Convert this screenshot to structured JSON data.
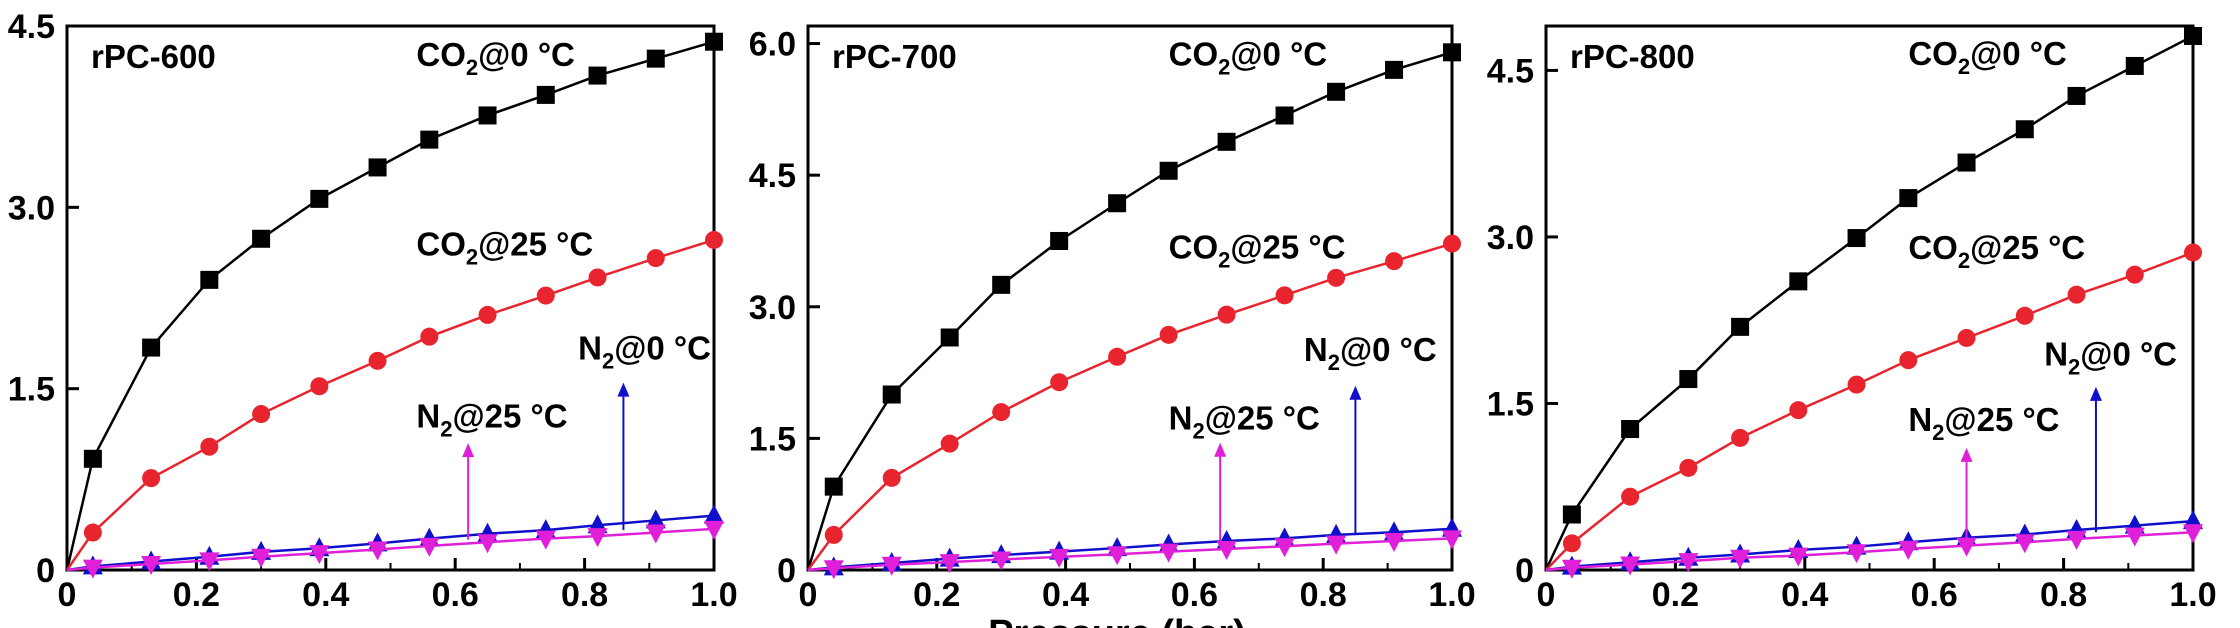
{
  "x_axis_label": "Pressure (bar)",
  "chart_data": [
    {
      "type": "line",
      "title": "rPC-600",
      "xlim": [
        0,
        1.0
      ],
      "ylim": [
        0,
        4.5
      ],
      "x_ticks": [
        0,
        0.2,
        0.4,
        0.6,
        0.8,
        1.0
      ],
      "y_ticks": [
        0,
        1.5,
        3.0,
        4.5
      ],
      "x_tick_labels": [
        "0",
        "0.2",
        "0.4",
        "0.6",
        "0.8",
        "1.0"
      ],
      "y_tick_labels": [
        "0",
        "1.5",
        "3.0",
        "4.5"
      ],
      "grid": false,
      "series": [
        {
          "name": "CO2@0 °C",
          "label_sub": "2",
          "label_pre": "CO",
          "label_post": "@0 °C",
          "color": "#000000",
          "marker": "square",
          "x": [
            0,
            0.04,
            0.13,
            0.22,
            0.3,
            0.39,
            0.48,
            0.56,
            0.65,
            0.74,
            0.82,
            0.91,
            1.0
          ],
          "y": [
            0,
            0.92,
            1.84,
            2.4,
            2.74,
            3.07,
            3.33,
            3.56,
            3.76,
            3.93,
            4.09,
            4.23,
            4.37
          ]
        },
        {
          "name": "CO2@25 °C",
          "label_sub": "2",
          "label_pre": "CO",
          "label_post": "@25 °C",
          "color": "#e8242e",
          "marker": "circle",
          "x": [
            0,
            0.04,
            0.13,
            0.22,
            0.3,
            0.39,
            0.48,
            0.56,
            0.65,
            0.74,
            0.82,
            0.91,
            1.0
          ],
          "y": [
            0,
            0.31,
            0.76,
            1.02,
            1.29,
            1.52,
            1.73,
            1.93,
            2.11,
            2.27,
            2.42,
            2.58,
            2.73
          ]
        },
        {
          "name": "N2@0 °C",
          "label_sub": "2",
          "label_pre": "N",
          "label_post": "@0 °C",
          "color": "#1010cc",
          "marker": "triangle-up",
          "x": [
            0,
            0.04,
            0.13,
            0.22,
            0.3,
            0.39,
            0.48,
            0.56,
            0.65,
            0.74,
            0.82,
            0.91,
            1.0
          ],
          "y": [
            0,
            0.03,
            0.07,
            0.11,
            0.15,
            0.18,
            0.22,
            0.26,
            0.3,
            0.33,
            0.37,
            0.41,
            0.45
          ]
        },
        {
          "name": "N2@25 °C",
          "label_sub": "2",
          "label_pre": "N",
          "label_post": "@25 °C",
          "color": "#e020d8",
          "marker": "triangle-down",
          "x": [
            0,
            0.04,
            0.13,
            0.22,
            0.3,
            0.39,
            0.48,
            0.56,
            0.65,
            0.74,
            0.82,
            0.91,
            1.0
          ],
          "y": [
            0,
            0.02,
            0.05,
            0.08,
            0.11,
            0.14,
            0.17,
            0.2,
            0.23,
            0.26,
            0.28,
            0.31,
            0.34
          ]
        }
      ],
      "annotations": [
        {
          "series": 0,
          "label_x": 0.54,
          "label_y": 4.17
        },
        {
          "series": 1,
          "label_x": 0.54,
          "label_y": 2.6
        },
        {
          "series": 2,
          "label_x": 0.79,
          "label_y": 1.74,
          "arrow_x": 0.86,
          "arrow_from": 0.33,
          "arrow_to": 1.55
        },
        {
          "series": 3,
          "label_x": 0.54,
          "label_y": 1.18,
          "arrow_x": 0.62,
          "arrow_from": 0.25,
          "arrow_to": 1.05
        }
      ]
    },
    {
      "type": "line",
      "title": "rPC-700",
      "xlim": [
        0,
        1.0
      ],
      "ylim": [
        0,
        6.2
      ],
      "x_ticks": [
        0,
        0.2,
        0.4,
        0.6,
        0.8,
        1.0
      ],
      "y_ticks": [
        0,
        1.5,
        3.0,
        4.5,
        6.0
      ],
      "x_tick_labels": [
        "0",
        "0.2",
        "0.4",
        "0.6",
        "0.8",
        "1.0"
      ],
      "y_tick_labels": [
        "0",
        "1.5",
        "3.0",
        "4.5",
        "6.0"
      ],
      "grid": false,
      "series": [
        {
          "name": "CO2@0 °C",
          "label_sub": "2",
          "label_pre": "CO",
          "label_post": "@0 °C",
          "color": "#000000",
          "marker": "square",
          "x": [
            0,
            0.04,
            0.13,
            0.22,
            0.3,
            0.39,
            0.48,
            0.56,
            0.65,
            0.74,
            0.82,
            0.91,
            1.0
          ],
          "y": [
            0,
            0.95,
            2.0,
            2.65,
            3.25,
            3.75,
            4.18,
            4.55,
            4.88,
            5.18,
            5.45,
            5.7,
            5.9
          ]
        },
        {
          "name": "CO2@25 °C",
          "label_sub": "2",
          "label_pre": "CO",
          "label_post": "@25 °C",
          "color": "#e8242e",
          "marker": "circle",
          "x": [
            0,
            0.04,
            0.13,
            0.22,
            0.3,
            0.39,
            0.48,
            0.56,
            0.65,
            0.74,
            0.82,
            0.91,
            1.0
          ],
          "y": [
            0,
            0.4,
            1.05,
            1.44,
            1.8,
            2.14,
            2.43,
            2.68,
            2.91,
            3.13,
            3.33,
            3.52,
            3.72
          ]
        },
        {
          "name": "N2@0 °C",
          "label_sub": "2",
          "label_pre": "N",
          "label_post": "@0 °C",
          "color": "#1010cc",
          "marker": "triangle-up",
          "x": [
            0,
            0.04,
            0.13,
            0.22,
            0.3,
            0.39,
            0.48,
            0.56,
            0.65,
            0.74,
            0.82,
            0.91,
            1.0
          ],
          "y": [
            0,
            0.03,
            0.08,
            0.13,
            0.17,
            0.21,
            0.25,
            0.29,
            0.33,
            0.36,
            0.4,
            0.43,
            0.47
          ]
        },
        {
          "name": "N2@25 °C",
          "label_sub": "2",
          "label_pre": "N",
          "label_post": "@25 °C",
          "color": "#e020d8",
          "marker": "triangle-down",
          "x": [
            0,
            0.04,
            0.13,
            0.22,
            0.3,
            0.39,
            0.48,
            0.56,
            0.65,
            0.74,
            0.82,
            0.91,
            1.0
          ],
          "y": [
            0,
            0.02,
            0.06,
            0.09,
            0.12,
            0.15,
            0.18,
            0.21,
            0.24,
            0.27,
            0.3,
            0.33,
            0.36
          ]
        }
      ],
      "annotations": [
        {
          "series": 0,
          "label_x": 0.56,
          "label_y": 5.75
        },
        {
          "series": 1,
          "label_x": 0.56,
          "label_y": 3.55
        },
        {
          "series": 2,
          "label_x": 0.77,
          "label_y": 2.38,
          "arrow_x": 0.85,
          "arrow_from": 0.42,
          "arrow_to": 2.1
        },
        {
          "series": 3,
          "label_x": 0.56,
          "label_y": 1.6,
          "arrow_x": 0.64,
          "arrow_from": 0.32,
          "arrow_to": 1.45
        }
      ]
    },
    {
      "type": "line",
      "title": "rPC-800",
      "xlim": [
        0,
        1.0
      ],
      "ylim": [
        0,
        4.9
      ],
      "x_ticks": [
        0,
        0.2,
        0.4,
        0.6,
        0.8,
        1.0
      ],
      "y_ticks": [
        0,
        1.5,
        3.0,
        4.5
      ],
      "x_tick_labels": [
        "0",
        "0.2",
        "0.4",
        "0.6",
        "0.8",
        "1.0"
      ],
      "y_tick_labels": [
        "0",
        "1.5",
        "3.0",
        "4.5"
      ],
      "grid": false,
      "series": [
        {
          "name": "CO2@0 °C",
          "label_sub": "2",
          "label_pre": "CO",
          "label_post": "@0 °C",
          "color": "#000000",
          "marker": "square",
          "x": [
            0,
            0.04,
            0.13,
            0.22,
            0.3,
            0.39,
            0.48,
            0.56,
            0.65,
            0.74,
            0.82,
            0.91,
            1.0
          ],
          "y": [
            0,
            0.5,
            1.27,
            1.72,
            2.19,
            2.6,
            2.99,
            3.35,
            3.67,
            3.97,
            4.27,
            4.54,
            4.81
          ]
        },
        {
          "name": "CO2@25 °C",
          "label_sub": "2",
          "label_pre": "CO",
          "label_post": "@25 °C",
          "color": "#e8242e",
          "marker": "circle",
          "x": [
            0,
            0.04,
            0.13,
            0.22,
            0.3,
            0.39,
            0.48,
            0.56,
            0.65,
            0.74,
            0.82,
            0.91,
            1.0
          ],
          "y": [
            0,
            0.24,
            0.66,
            0.92,
            1.19,
            1.44,
            1.67,
            1.89,
            2.09,
            2.29,
            2.48,
            2.66,
            2.86
          ]
        },
        {
          "name": "N2@0 °C",
          "label_sub": "2",
          "label_pre": "N",
          "label_post": "@0 °C",
          "color": "#1010cc",
          "marker": "triangle-up",
          "x": [
            0,
            0.04,
            0.13,
            0.22,
            0.3,
            0.39,
            0.48,
            0.56,
            0.65,
            0.74,
            0.82,
            0.91,
            1.0
          ],
          "y": [
            0,
            0.03,
            0.07,
            0.11,
            0.14,
            0.18,
            0.21,
            0.25,
            0.29,
            0.32,
            0.36,
            0.4,
            0.44
          ]
        },
        {
          "name": "N2@25 °C",
          "label_sub": "2",
          "label_pre": "N",
          "label_post": "@25 °C",
          "color": "#e020d8",
          "marker": "triangle-down",
          "x": [
            0,
            0.04,
            0.13,
            0.22,
            0.3,
            0.39,
            0.48,
            0.56,
            0.65,
            0.74,
            0.82,
            0.91,
            1.0
          ],
          "y": [
            0,
            0.02,
            0.05,
            0.08,
            0.11,
            0.13,
            0.16,
            0.19,
            0.22,
            0.25,
            0.28,
            0.31,
            0.34
          ]
        }
      ],
      "annotations": [
        {
          "series": 0,
          "label_x": 0.56,
          "label_y": 4.55
        },
        {
          "series": 1,
          "label_x": 0.56,
          "label_y": 2.8
        },
        {
          "series": 2,
          "label_x": 0.77,
          "label_y": 1.84,
          "arrow_x": 0.85,
          "arrow_from": 0.34,
          "arrow_to": 1.65
        },
        {
          "series": 3,
          "label_x": 0.56,
          "label_y": 1.25,
          "arrow_x": 0.65,
          "arrow_from": 0.25,
          "arrow_to": 1.1
        }
      ]
    }
  ]
}
